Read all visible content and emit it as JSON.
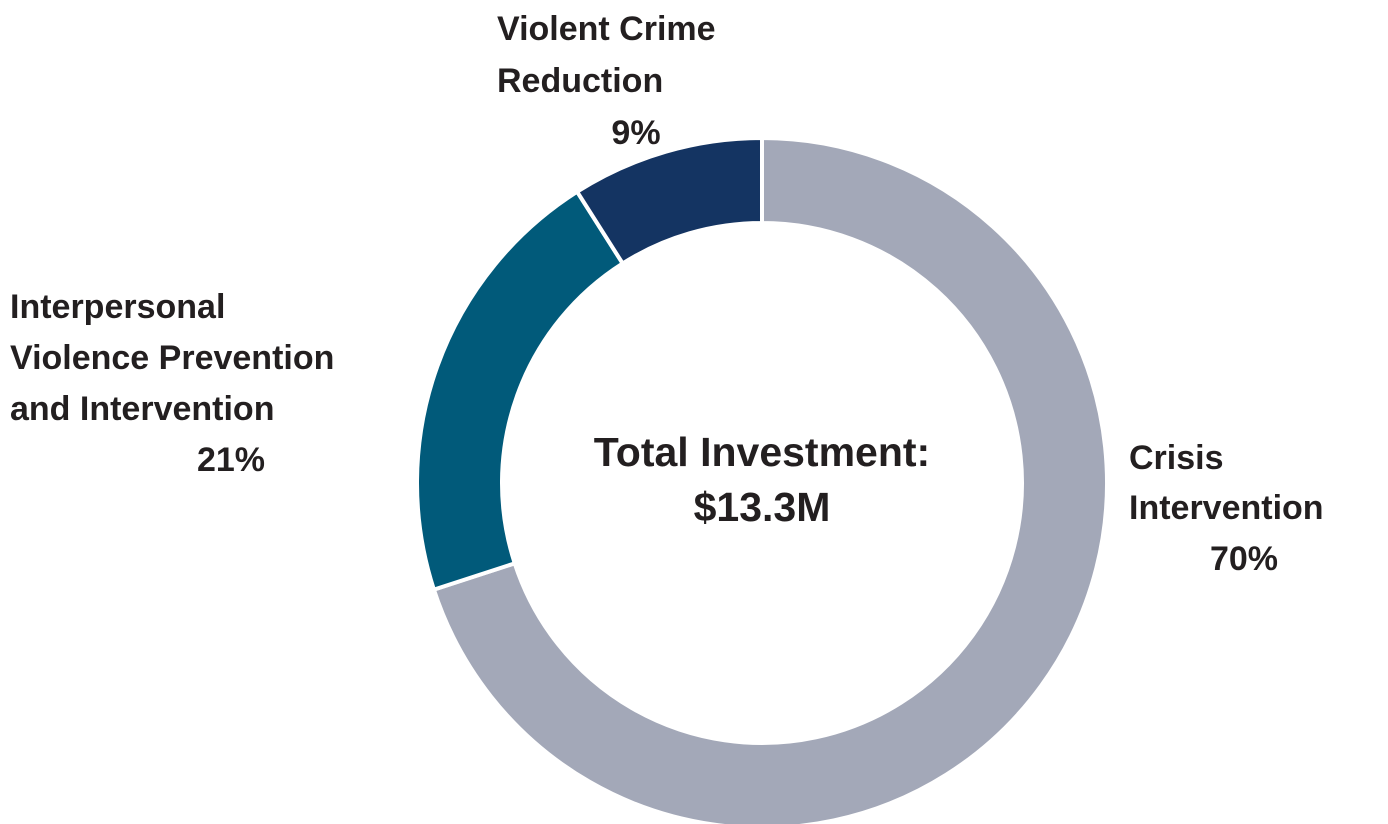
{
  "chart_data": {
    "type": "pie",
    "variant": "donut",
    "center_text": [
      "Total Investment:",
      "$13.3M"
    ],
    "slices": [
      {
        "label_lines": [
          "Crisis",
          "Intervention"
        ],
        "value": 70,
        "value_label": "70%",
        "color": "#a3a8b8"
      },
      {
        "label_lines": [
          "Interpersonal",
          "Violence Prevention",
          "and Intervention"
        ],
        "value": 21,
        "value_label": "21%",
        "color": "#015a7a"
      },
      {
        "label_lines": [
          "Violent Crime",
          "Reduction"
        ],
        "value": 9,
        "value_label": "9%",
        "color": "#143462"
      }
    ],
    "legend": "none",
    "start_angle": "12 o'clock",
    "direction": "clockwise"
  }
}
